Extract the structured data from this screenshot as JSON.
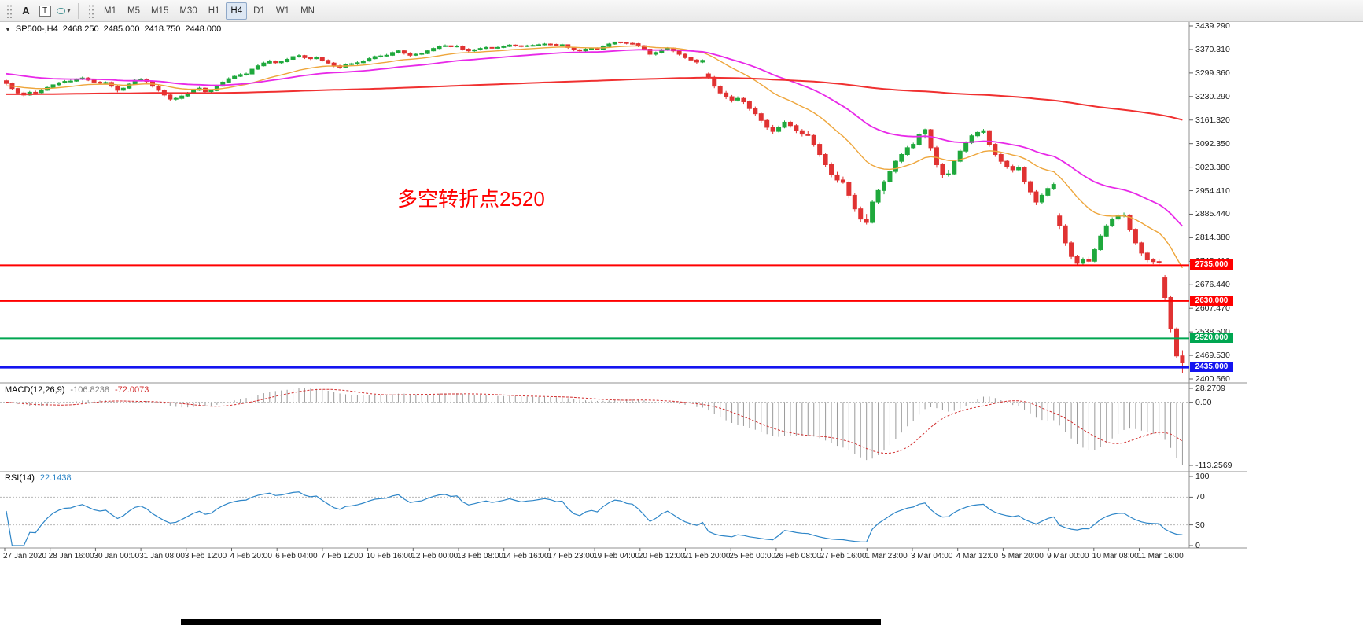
{
  "toolbar": {
    "tools": [
      {
        "name": "annotation-tool",
        "label": "A"
      },
      {
        "name": "text-tool",
        "label": "T"
      },
      {
        "name": "shapes-tool",
        "label": ""
      }
    ],
    "timeframes": [
      {
        "label": "M1",
        "active": false
      },
      {
        "label": "M5",
        "active": false
      },
      {
        "label": "M15",
        "active": false
      },
      {
        "label": "M30",
        "active": false
      },
      {
        "label": "H1",
        "active": false
      },
      {
        "label": "H4",
        "active": true
      },
      {
        "label": "D1",
        "active": false
      },
      {
        "label": "W1",
        "active": false
      },
      {
        "label": "MN",
        "active": false
      }
    ]
  },
  "chart_data": {
    "type": "candlestick",
    "symbol": "SP500-",
    "timeframe": "H4",
    "info_bar": {
      "symbol_period": "SP500-,H4",
      "open": "2468.250",
      "high": "2485.000",
      "low": "2418.750",
      "close": "2448.000"
    },
    "up_color": "#1fa83c",
    "down_color": "#e03232",
    "price_axis_labels": [
      "3439.290",
      "3370.310",
      "3299.360",
      "3230.290",
      "3161.320",
      "3092.350",
      "3023.380",
      "2954.410",
      "2885.440",
      "2814.380",
      "2745.410",
      "2676.440",
      "2607.470",
      "2538.500",
      "2469.530",
      "2400.560"
    ],
    "date_axis_labels": [
      "27 Jan 2020",
      "28 Jan 16:00",
      "30 Jan 00:00",
      "31 Jan 08:00",
      "3 Feb 12:00",
      "4 Feb 20:00",
      "6 Feb 04:00",
      "7 Feb 12:00",
      "10 Feb 16:00",
      "12 Feb 00:00",
      "13 Feb 08:00",
      "14 Feb 16:00",
      "17 Feb 23:00",
      "19 Feb 04:00",
      "20 Feb 12:00",
      "21 Feb 20:00",
      "25 Feb 00:00",
      "26 Feb 08:00",
      "27 Feb 16:00",
      "1 Mar 23:00",
      "3 Mar 04:00",
      "4 Mar 12:00",
      "5 Mar 20:00",
      "9 Mar 00:00",
      "10 Mar 08:00",
      "11 Mar 16:00"
    ],
    "horizontal_levels": [
      {
        "price": 2735.0,
        "label": "2735.000",
        "color": "#ff0000",
        "width": 2
      },
      {
        "price": 2630.0,
        "label": "2630.000",
        "color": "#ff0000",
        "width": 2
      },
      {
        "price": 2520.0,
        "label": "2520.000",
        "color": "#00a651",
        "width": 2
      },
      {
        "price": 2435.0,
        "label": "2435.000",
        "color": "#1414f0",
        "width": 3
      }
    ],
    "moving_averages": [
      {
        "period": 20,
        "color": "#eea63c",
        "width": 1.4,
        "seed": 3262
      },
      {
        "period": 45,
        "color": "#e829e8",
        "width": 1.8,
        "seed": 3300
      },
      {
        "period": 340,
        "color": "#f03030",
        "width": 2,
        "seed": 3238
      }
    ],
    "macd": {
      "title": "MACD(12,26,9)",
      "fast": 12,
      "slow": 26,
      "signal": 9,
      "value_main": "-106.8238",
      "value_signal": "-72.0073",
      "axis_labels": [
        "28.2709",
        "0.00",
        "-113.2569"
      ],
      "hist_color": "#9a9a9a",
      "signal_color": "#d23030"
    },
    "rsi": {
      "title": "RSI(14)",
      "period": 14,
      "value": "22.1438",
      "axis_labels": [
        100,
        70,
        30,
        0
      ],
      "levels": [
        70,
        30
      ],
      "color": "#2e86c8"
    },
    "annotation": {
      "text": "多空转折点2520",
      "color": "#ff0000"
    },
    "candles": [
      [
        3278,
        3281,
        3266,
        3270
      ],
      [
        3270,
        3273,
        3251,
        3255
      ],
      [
        3255,
        3257,
        3238,
        3242
      ],
      [
        3242,
        3246,
        3231,
        3236
      ],
      [
        3236,
        3248,
        3234,
        3244
      ],
      [
        3244,
        3249,
        3240,
        3243
      ],
      [
        3243,
        3253,
        3241,
        3250
      ],
      [
        3250,
        3261,
        3248,
        3258
      ],
      [
        3258,
        3269,
        3256,
        3266
      ],
      [
        3266,
        3275,
        3263,
        3272
      ],
      [
        3272,
        3280,
        3270,
        3276
      ],
      [
        3276,
        3281,
        3273,
        3277
      ],
      [
        3277,
        3285,
        3275,
        3282
      ],
      [
        3282,
        3290,
        3280,
        3286
      ],
      [
        3286,
        3289,
        3277,
        3280
      ],
      [
        3280,
        3283,
        3271,
        3274
      ],
      [
        3274,
        3277,
        3268,
        3271
      ],
      [
        3271,
        3276,
        3269,
        3273
      ],
      [
        3273,
        3276,
        3258,
        3262
      ],
      [
        3262,
        3265,
        3244,
        3250
      ],
      [
        3250,
        3259,
        3247,
        3256
      ],
      [
        3256,
        3271,
        3254,
        3268
      ],
      [
        3268,
        3282,
        3266,
        3279
      ],
      [
        3279,
        3286,
        3276,
        3283
      ],
      [
        3283,
        3285,
        3272,
        3276
      ],
      [
        3276,
        3278,
        3258,
        3262
      ],
      [
        3262,
        3265,
        3246,
        3250
      ],
      [
        3250,
        3253,
        3232,
        3236
      ],
      [
        3236,
        3239,
        3218,
        3224
      ],
      [
        3224,
        3231,
        3220,
        3226
      ],
      [
        3226,
        3237,
        3222,
        3233
      ],
      [
        3233,
        3245,
        3230,
        3241
      ],
      [
        3241,
        3254,
        3239,
        3250
      ],
      [
        3250,
        3260,
        3248,
        3256
      ],
      [
        3256,
        3258,
        3242,
        3246
      ],
      [
        3246,
        3253,
        3243,
        3249
      ],
      [
        3249,
        3266,
        3247,
        3262
      ],
      [
        3262,
        3278,
        3260,
        3274
      ],
      [
        3274,
        3288,
        3272,
        3284
      ],
      [
        3284,
        3295,
        3282,
        3291
      ],
      [
        3291,
        3300,
        3289,
        3296
      ],
      [
        3296,
        3302,
        3293,
        3298
      ],
      [
        3298,
        3316,
        3296,
        3312
      ],
      [
        3312,
        3326,
        3310,
        3322
      ],
      [
        3322,
        3334,
        3320,
        3330
      ],
      [
        3330,
        3340,
        3328,
        3336
      ],
      [
        3336,
        3338,
        3326,
        3331
      ],
      [
        3331,
        3337,
        3328,
        3334
      ],
      [
        3334,
        3345,
        3332,
        3341
      ],
      [
        3341,
        3353,
        3339,
        3349
      ],
      [
        3349,
        3356,
        3346,
        3352
      ],
      [
        3352,
        3354,
        3342,
        3346
      ],
      [
        3346,
        3349,
        3339,
        3343
      ],
      [
        3343,
        3350,
        3341,
        3346
      ],
      [
        3346,
        3348,
        3334,
        3338
      ],
      [
        3338,
        3341,
        3326,
        3330
      ],
      [
        3330,
        3333,
        3318,
        3322
      ],
      [
        3322,
        3325,
        3313,
        3318
      ],
      [
        3318,
        3329,
        3316,
        3326
      ],
      [
        3326,
        3331,
        3322,
        3328
      ],
      [
        3328,
        3335,
        3324,
        3331
      ],
      [
        3331,
        3340,
        3329,
        3336
      ],
      [
        3336,
        3347,
        3334,
        3343
      ],
      [
        3343,
        3352,
        3341,
        3349
      ],
      [
        3349,
        3355,
        3346,
        3351
      ],
      [
        3351,
        3357,
        3348,
        3353
      ],
      [
        3353,
        3364,
        3351,
        3361
      ],
      [
        3361,
        3369,
        3358,
        3366
      ],
      [
        3366,
        3369,
        3355,
        3359
      ],
      [
        3359,
        3362,
        3349,
        3353
      ],
      [
        3353,
        3360,
        3351,
        3356
      ],
      [
        3356,
        3361,
        3353,
        3358
      ],
      [
        3358,
        3369,
        3356,
        3366
      ],
      [
        3366,
        3376,
        3364,
        3373
      ],
      [
        3373,
        3382,
        3371,
        3379
      ],
      [
        3379,
        3385,
        3377,
        3381
      ],
      [
        3381,
        3383,
        3374,
        3378
      ],
      [
        3378,
        3384,
        3376,
        3380
      ],
      [
        3380,
        3382,
        3367,
        3371
      ],
      [
        3371,
        3374,
        3362,
        3366
      ],
      [
        3366,
        3372,
        3363,
        3369
      ],
      [
        3369,
        3376,
        3367,
        3373
      ],
      [
        3373,
        3379,
        3371,
        3376
      ],
      [
        3376,
        3379,
        3371,
        3374
      ],
      [
        3374,
        3379,
        3372,
        3376
      ],
      [
        3376,
        3382,
        3374,
        3379
      ],
      [
        3379,
        3386,
        3377,
        3383
      ],
      [
        3383,
        3385,
        3378,
        3381
      ],
      [
        3381,
        3383,
        3376,
        3379
      ],
      [
        3379,
        3384,
        3377,
        3381
      ],
      [
        3381,
        3385,
        3379,
        3382
      ],
      [
        3382,
        3387,
        3380,
        3384
      ],
      [
        3384,
        3389,
        3382,
        3386
      ],
      [
        3386,
        3388,
        3382,
        3385
      ],
      [
        3385,
        3387,
        3381,
        3383
      ],
      [
        3383,
        3387,
        3381,
        3384
      ],
      [
        3384,
        3385,
        3372,
        3376
      ],
      [
        3376,
        3378,
        3365,
        3369
      ],
      [
        3369,
        3372,
        3362,
        3366
      ],
      [
        3366,
        3374,
        3364,
        3371
      ],
      [
        3371,
        3376,
        3369,
        3373
      ],
      [
        3373,
        3376,
        3368,
        3371
      ],
      [
        3371,
        3382,
        3369,
        3379
      ],
      [
        3379,
        3389,
        3377,
        3386
      ],
      [
        3386,
        3393,
        3384,
        3392
      ],
      [
        3392,
        3393,
        3387,
        3391
      ],
      [
        3391,
        3393,
        3385,
        3388
      ],
      [
        3388,
        3391,
        3384,
        3387
      ],
      [
        3387,
        3389,
        3377,
        3381
      ],
      [
        3381,
        3383,
        3367,
        3371
      ],
      [
        3371,
        3373,
        3350,
        3356
      ],
      [
        3356,
        3364,
        3352,
        3361
      ],
      [
        3361,
        3372,
        3358,
        3369
      ],
      [
        3369,
        3377,
        3366,
        3374
      ],
      [
        3374,
        3376,
        3362,
        3366
      ],
      [
        3366,
        3368,
        3352,
        3356
      ],
      [
        3356,
        3359,
        3342,
        3346
      ],
      [
        3346,
        3349,
        3335,
        3339
      ],
      [
        3339,
        3342,
        3328,
        3333
      ],
      [
        3333,
        3341,
        3330,
        3338
      ],
      [
        3298,
        3302,
        3282,
        3288
      ],
      [
        3288,
        3292,
        3256,
        3262
      ],
      [
        3262,
        3266,
        3236,
        3242
      ],
      [
        3242,
        3248,
        3224,
        3231
      ],
      [
        3231,
        3236,
        3214,
        3221
      ],
      [
        3221,
        3232,
        3217,
        3226
      ],
      [
        3226,
        3230,
        3210,
        3216
      ],
      [
        3216,
        3220,
        3190,
        3196
      ],
      [
        3196,
        3202,
        3174,
        3181
      ],
      [
        3181,
        3185,
        3154,
        3161
      ],
      [
        3161,
        3166,
        3134,
        3141
      ],
      [
        3141,
        3148,
        3122,
        3129
      ],
      [
        3129,
        3146,
        3126,
        3141
      ],
      [
        3141,
        3161,
        3138,
        3156
      ],
      [
        3156,
        3160,
        3140,
        3146
      ],
      [
        3146,
        3150,
        3124,
        3131
      ],
      [
        3131,
        3136,
        3114,
        3121
      ],
      [
        3121,
        3130,
        3116,
        3117
      ],
      [
        3117,
        3120,
        3084,
        3091
      ],
      [
        3091,
        3096,
        3054,
        3061
      ],
      [
        3061,
        3066,
        3024,
        3031
      ],
      [
        3031,
        3038,
        2994,
        3001
      ],
      [
        3001,
        3010,
        2978,
        2986
      ],
      [
        2986,
        2996,
        2975,
        2979
      ],
      [
        2979,
        2983,
        2932,
        2941
      ],
      [
        2941,
        2948,
        2892,
        2901
      ],
      [
        2901,
        2908,
        2862,
        2871
      ],
      [
        2871,
        2886,
        2855,
        2861
      ],
      [
        2861,
        2926,
        2858,
        2921
      ],
      [
        2921,
        2959,
        2916,
        2955
      ],
      [
        2955,
        2986,
        2944,
        2981
      ],
      [
        2981,
        3016,
        2976,
        3011
      ],
      [
        3011,
        3046,
        3006,
        3041
      ],
      [
        3041,
        3066,
        3036,
        3061
      ],
      [
        3061,
        3086,
        3056,
        3081
      ],
      [
        3081,
        3096,
        3076,
        3091
      ],
      [
        3091,
        3126,
        3086,
        3121
      ],
      [
        3121,
        3137,
        3108,
        3134
      ],
      [
        3134,
        3136,
        3072,
        3081
      ],
      [
        3081,
        3086,
        3022,
        3031
      ],
      [
        3031,
        3036,
        2992,
        3001
      ],
      [
        3001,
        3016,
        2996,
        3004
      ],
      [
        3004,
        3046,
        3000,
        3041
      ],
      [
        3041,
        3076,
        3037,
        3071
      ],
      [
        3071,
        3100,
        3067,
        3096
      ],
      [
        3096,
        3120,
        3092,
        3116
      ],
      [
        3116,
        3130,
        3112,
        3126
      ],
      [
        3126,
        3136,
        3121,
        3131
      ],
      [
        3131,
        3133,
        3084,
        3091
      ],
      [
        3091,
        3094,
        3054,
        3061
      ],
      [
        3061,
        3064,
        3034,
        3041
      ],
      [
        3041,
        3044,
        3019,
        3026
      ],
      [
        3026,
        3031,
        3008,
        3016
      ],
      [
        3016,
        3029,
        3011,
        3024
      ],
      [
        3024,
        3026,
        2974,
        2981
      ],
      [
        2981,
        2984,
        2942,
        2951
      ],
      [
        2951,
        2956,
        2912,
        2921
      ],
      [
        2921,
        2946,
        2916,
        2941
      ],
      [
        2941,
        2966,
        2936,
        2961
      ],
      [
        2961,
        2978,
        2956,
        2973
      ],
      [
        2880,
        2888,
        2842,
        2851
      ],
      [
        2851,
        2856,
        2792,
        2801
      ],
      [
        2801,
        2806,
        2752,
        2761
      ],
      [
        2761,
        2766,
        2734,
        2741
      ],
      [
        2741,
        2758,
        2735,
        2751
      ],
      [
        2751,
        2760,
        2742,
        2747
      ],
      [
        2747,
        2786,
        2744,
        2781
      ],
      [
        2781,
        2826,
        2778,
        2821
      ],
      [
        2821,
        2856,
        2817,
        2851
      ],
      [
        2851,
        2876,
        2847,
        2871
      ],
      [
        2871,
        2886,
        2866,
        2881
      ],
      [
        2881,
        2890,
        2876,
        2883
      ],
      [
        2883,
        2885,
        2834,
        2841
      ],
      [
        2841,
        2844,
        2794,
        2801
      ],
      [
        2801,
        2804,
        2764,
        2771
      ],
      [
        2771,
        2776,
        2744,
        2751
      ],
      [
        2751,
        2756,
        2738,
        2746
      ],
      [
        2746,
        2752,
        2736,
        2742
      ],
      [
        2700,
        2706,
        2632,
        2640
      ],
      [
        2640,
        2646,
        2538,
        2548
      ],
      [
        2548,
        2552,
        2462,
        2468.25
      ],
      [
        2468.25,
        2485,
        2418.75,
        2448
      ]
    ]
  }
}
